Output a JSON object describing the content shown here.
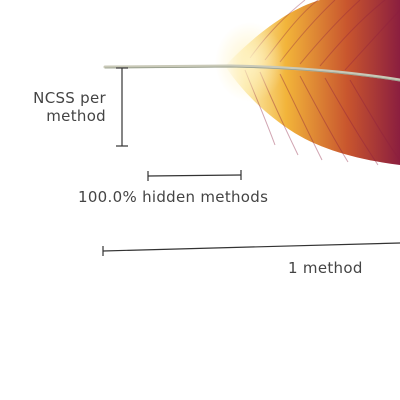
{
  "legend": {
    "ncss_per_method": [
      "NCSS per",
      "method"
    ],
    "hidden_methods": "100.0% hidden methods",
    "method_count": "1 method"
  },
  "feather": {
    "colors": {
      "tip": "#8b1e3f",
      "mid": "#c8552e",
      "base": "#f2b43a",
      "glow": "#fbe7a0",
      "quill": "#c9c9b8"
    }
  },
  "colors": {
    "ink": "#3a3a3a",
    "background": "#ffffff"
  }
}
